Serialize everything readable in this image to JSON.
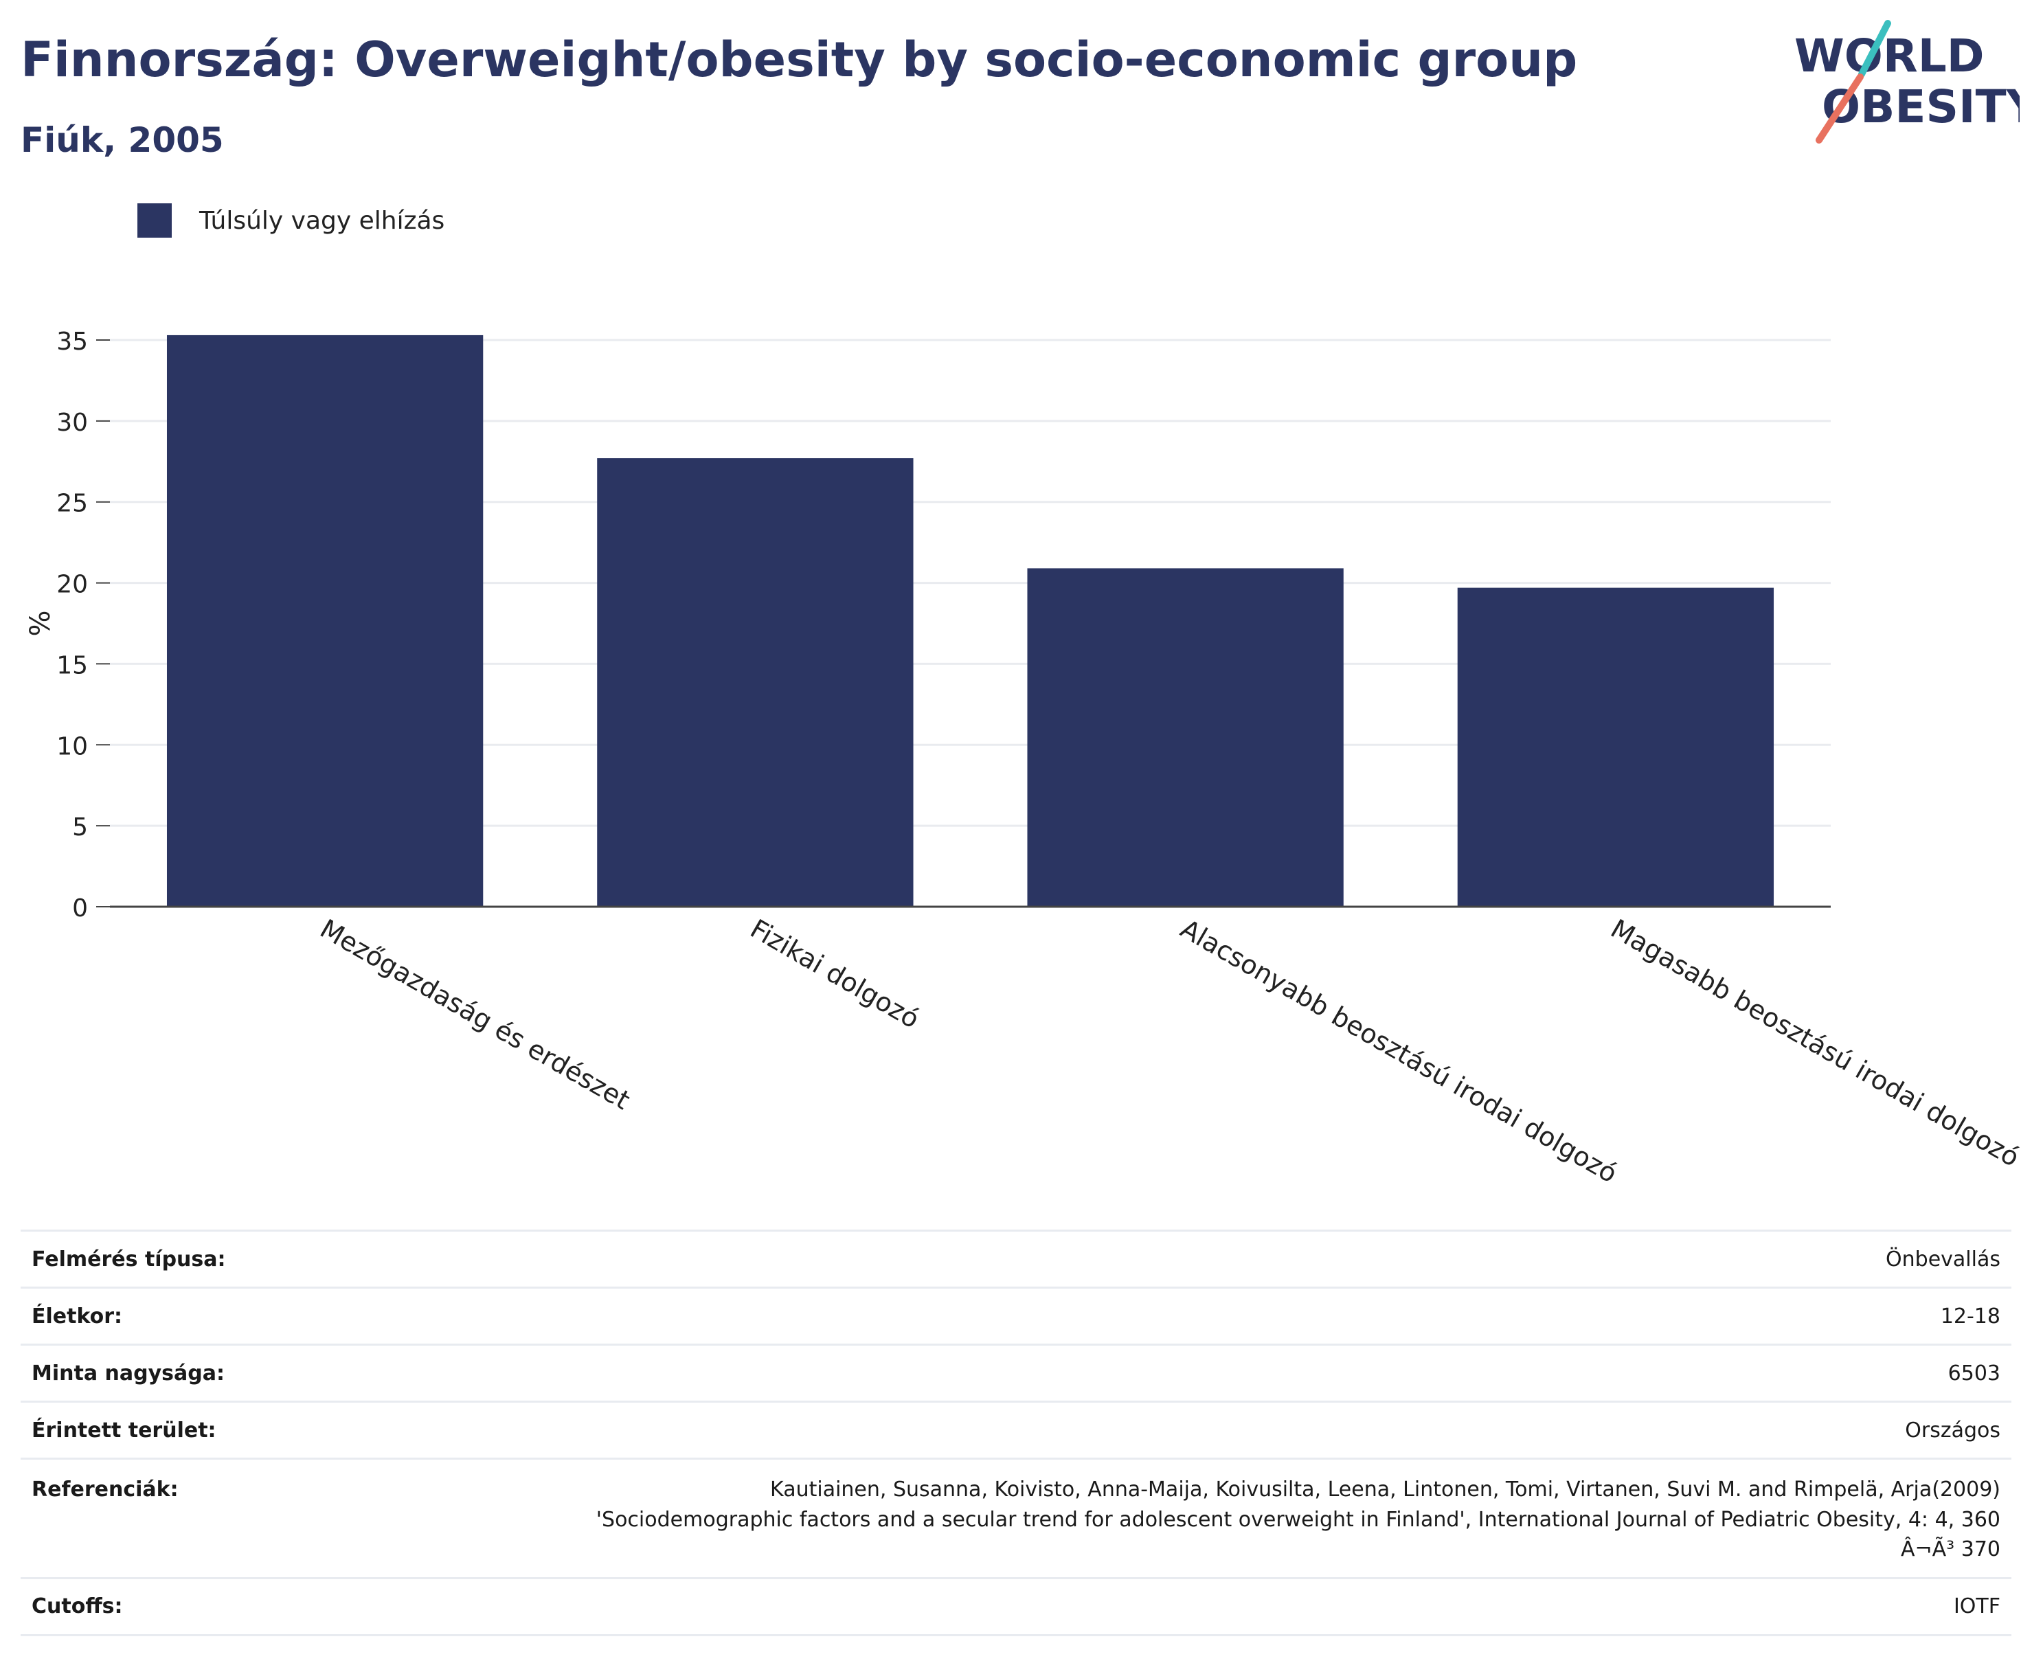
{
  "header": {
    "title": "Finnország: Overweight/obesity by socio-economic group",
    "subtitle": "Fiúk, 2005"
  },
  "logo": {
    "line1": "WORLD",
    "line2": "OBESITY",
    "accent_teal": "#3bbfbf",
    "accent_coral": "#e8715f"
  },
  "legend": {
    "label": "Túlsúly vagy elhízás",
    "color": "#2b3562"
  },
  "chart_data": {
    "type": "bar",
    "categories": [
      "Mezőgazdaság és erdészet",
      "Fizikai dolgozó",
      "Alacsonyabb beosztású irodai dolgozó",
      "Magasabb beosztású irodai dolgozó"
    ],
    "series": [
      {
        "name": "Túlsúly vagy elhízás",
        "values": [
          35.3,
          27.7,
          20.9,
          19.7
        ],
        "color": "#2b3562"
      }
    ],
    "ylabel": "%",
    "xlabel": "",
    "ylim": [
      0,
      35
    ],
    "yticks": [
      0,
      5,
      10,
      15,
      20,
      25,
      30,
      35
    ],
    "grid": true,
    "legend_position": "top-left"
  },
  "meta": {
    "rows": [
      {
        "key": "Felmérés típusa:",
        "value": "Önbevallás"
      },
      {
        "key": "Életkor:",
        "value": "12-18"
      },
      {
        "key": "Minta nagysága:",
        "value": "6503"
      },
      {
        "key": "Érintett terület:",
        "value": "Országos"
      }
    ],
    "references": {
      "key": "Referenciák:",
      "lines": [
        "Kautiainen, Susanna, Koivisto, Anna-Maija, Koivusilta, Leena, Lintonen, Tomi, Virtanen, Suvi M. and Rimpelä, Arja(2009)",
        "'Sociodemographic factors and a secular trend for adolescent overweight in Finland', International Journal of Pediatric Obesity, 4: 4, 360",
        "Â¬Ã³ 370"
      ]
    },
    "cutoffs": {
      "key": "Cutoffs:",
      "value": "IOTF"
    }
  }
}
